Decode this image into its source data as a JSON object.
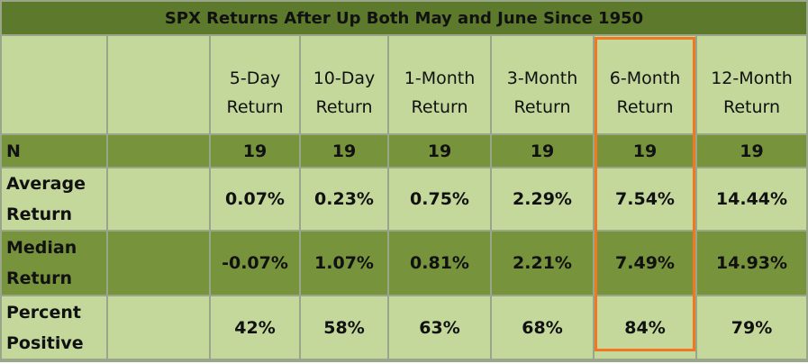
{
  "header": {
    "title": "SPX Returns After Up Both May and June Since 1950"
  },
  "table": {
    "columns": [
      "5-Day Return",
      "10-Day Return",
      "1-Month Return",
      "3-Month Return",
      "6-Month Return",
      "12-Month Return"
    ],
    "rows": [
      {
        "label": "N",
        "values": [
          "19",
          "19",
          "19",
          "19",
          "19",
          "19"
        ]
      },
      {
        "label": "Average Return",
        "values": [
          "0.07%",
          "0.23%",
          "0.75%",
          "2.29%",
          "7.54%",
          "14.44%"
        ]
      },
      {
        "label": "Median Return",
        "values": [
          "-0.07%",
          "1.07%",
          "0.81%",
          "2.21%",
          "7.49%",
          "14.93%"
        ]
      },
      {
        "label": "Percent Positive",
        "values": [
          "42%",
          "58%",
          "63%",
          "68%",
          "84%",
          "79%"
        ]
      }
    ]
  }
}
